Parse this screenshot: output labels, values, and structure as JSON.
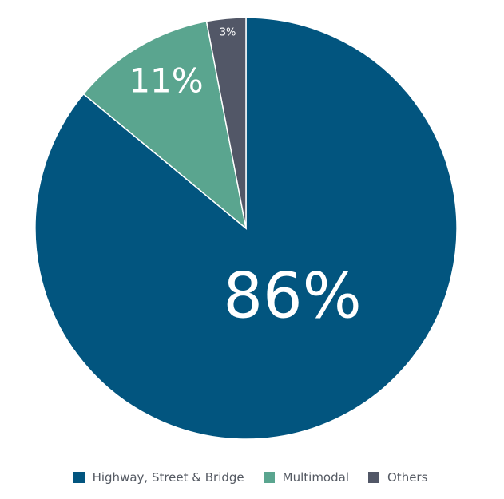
{
  "chart_data": {
    "type": "pie",
    "categories": [
      "Highway, Street & Bridge",
      "Multimodal",
      "Others"
    ],
    "values": [
      86,
      11,
      3
    ],
    "data_labels": [
      "86%",
      "11%",
      "3%"
    ],
    "colors": [
      "#02557f",
      "#5aa58f",
      "#525767"
    ],
    "legend_position": "bottom"
  },
  "legend": {
    "items": [
      {
        "label": "Highway, Street & Bridge",
        "color": "#02557f"
      },
      {
        "label": "Multimodal",
        "color": "#5aa58f"
      },
      {
        "label": "Others",
        "color": "#525767"
      }
    ]
  }
}
